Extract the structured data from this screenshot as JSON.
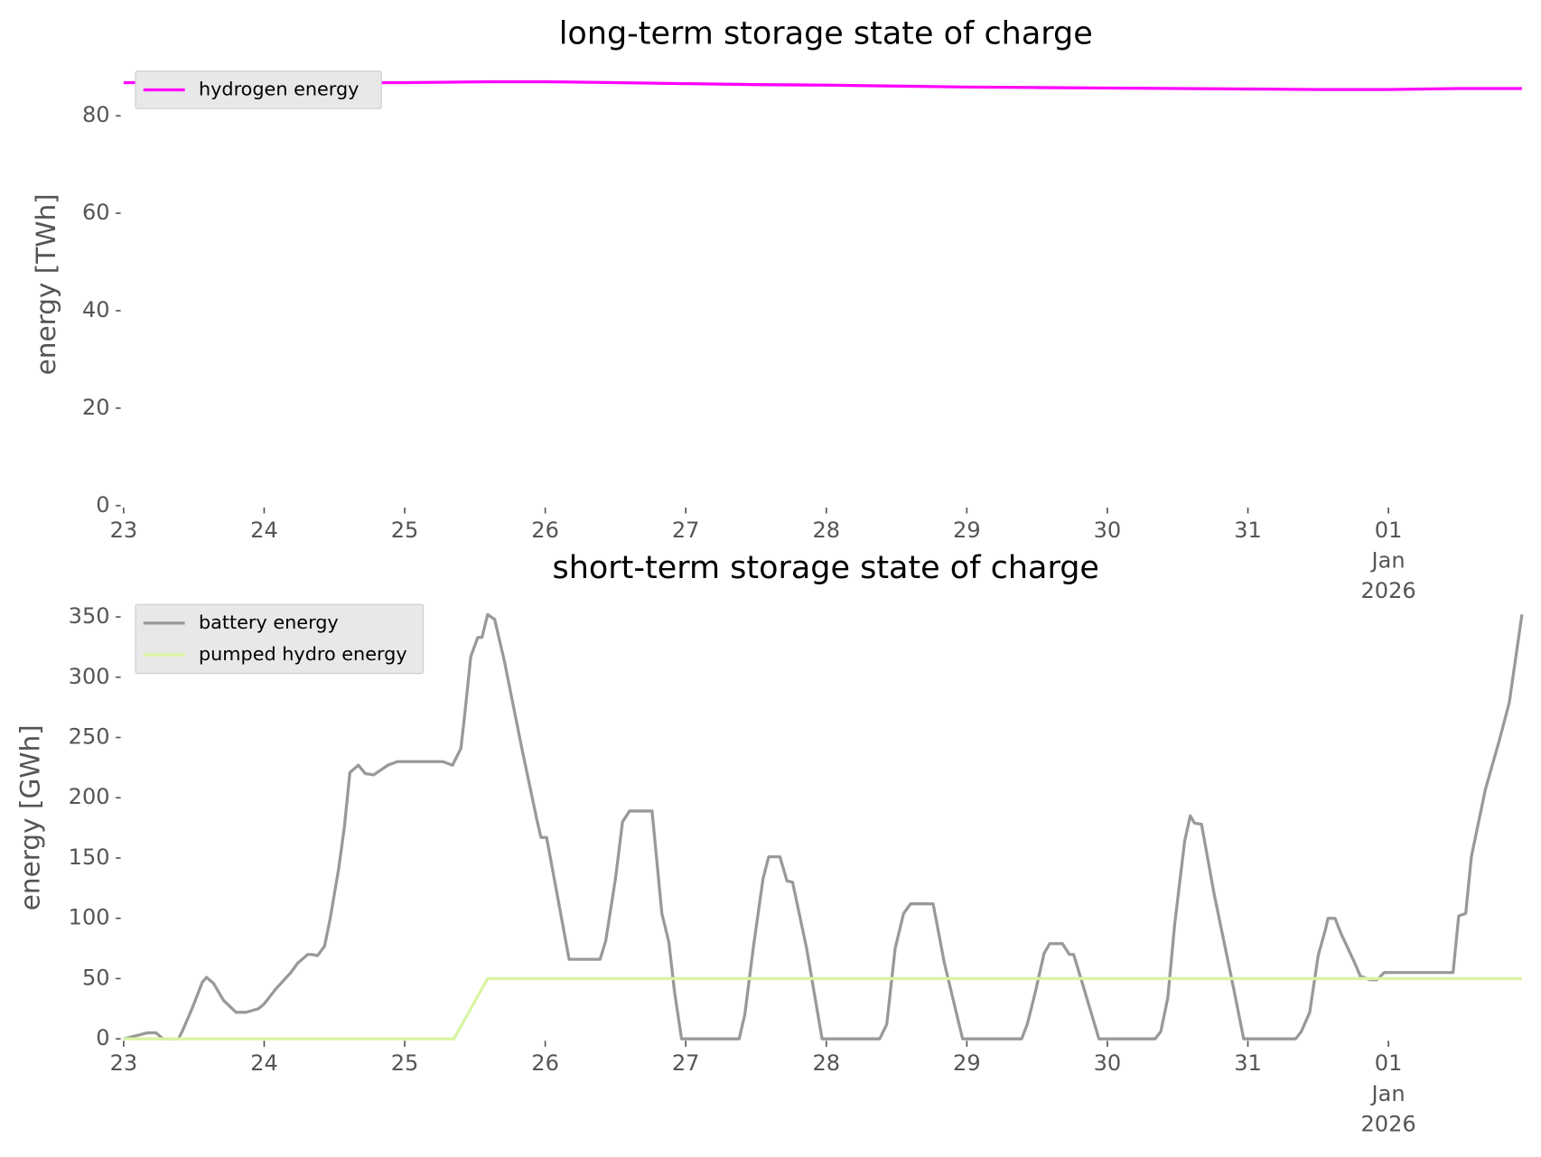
{
  "chart_data": [
    {
      "type": "line",
      "title": "long-term storage state of charge",
      "y_label": "energy [TWh]",
      "xlim": [
        23,
        33
      ],
      "ylim": [
        0,
        91
      ],
      "xticks": [
        {
          "value": 23,
          "label": "23"
        },
        {
          "value": 24,
          "label": "24"
        },
        {
          "value": 25,
          "label": "25"
        },
        {
          "value": 26,
          "label": "26"
        },
        {
          "value": 27,
          "label": "27"
        },
        {
          "value": 28,
          "label": "28"
        },
        {
          "value": 29,
          "label": "29"
        },
        {
          "value": 30,
          "label": "30"
        },
        {
          "value": 31,
          "label": "31"
        },
        {
          "value": 32,
          "label": "01\nJan\n2026"
        }
      ],
      "yticks": [
        0,
        20,
        40,
        60,
        80
      ],
      "grid": false,
      "legend": "upper left",
      "series": [
        {
          "name": "hydrogen energy",
          "color": "#ff00ff",
          "x": [
            23,
            24,
            25,
            25.6,
            26,
            26.5,
            27,
            27.5,
            28,
            28.5,
            29,
            29.5,
            30,
            30.5,
            31,
            31.5,
            32,
            32.5,
            32.95
          ],
          "values": [
            86.8,
            86.8,
            86.8,
            87.0,
            87.0,
            86.8,
            86.6,
            86.4,
            86.3,
            86.1,
            85.9,
            85.8,
            85.7,
            85.6,
            85.5,
            85.4,
            85.4,
            85.6,
            85.6
          ]
        }
      ]
    },
    {
      "type": "line",
      "title": "short-term storage state of charge",
      "y_label": "energy [GWh]",
      "xlim": [
        23,
        33
      ],
      "ylim": [
        0,
        367
      ],
      "xticks": [
        {
          "value": 23,
          "label": "23"
        },
        {
          "value": 24,
          "label": "24"
        },
        {
          "value": 25,
          "label": "25"
        },
        {
          "value": 26,
          "label": "26"
        },
        {
          "value": 27,
          "label": "27"
        },
        {
          "value": 28,
          "label": "28"
        },
        {
          "value": 29,
          "label": "29"
        },
        {
          "value": 30,
          "label": "30"
        },
        {
          "value": 31,
          "label": "31"
        },
        {
          "value": 32,
          "label": "01\nJan\n2026"
        }
      ],
      "yticks": [
        0,
        50,
        100,
        150,
        200,
        250,
        300,
        350
      ],
      "grid": false,
      "legend": "upper left",
      "series": [
        {
          "name": "battery energy",
          "color": "#999999",
          "x": [
            23,
            23.17,
            23.23,
            23.28,
            23.39,
            23.42,
            23.49,
            23.56,
            23.59,
            23.64,
            23.71,
            23.8,
            23.87,
            23.96,
            24.0,
            24.08,
            24.19,
            24.24,
            24.31,
            24.34,
            24.38,
            24.43,
            24.47,
            24.53,
            24.57,
            24.61,
            24.67,
            24.72,
            24.78,
            24.83,
            24.88,
            24.95,
            25.27,
            25.34,
            25.4,
            25.43,
            25.47,
            25.52,
            25.55,
            25.59,
            25.64,
            25.71,
            25.83,
            25.94,
            25.97,
            26.01,
            26.17,
            26.39,
            26.43,
            26.5,
            26.55,
            26.6,
            26.76,
            26.83,
            26.88,
            26.92,
            26.97,
            27.38,
            27.42,
            27.48,
            27.55,
            27.59,
            27.67,
            27.72,
            27.76,
            27.86,
            27.97,
            28.38,
            28.43,
            28.49,
            28.55,
            28.6,
            28.76,
            28.84,
            28.97,
            29.39,
            29.43,
            29.49,
            29.55,
            29.59,
            29.68,
            29.73,
            29.76,
            29.83,
            29.94,
            30.34,
            30.38,
            30.43,
            30.48,
            30.55,
            30.59,
            30.62,
            30.67,
            30.76,
            30.9,
            30.97,
            31.34,
            31.38,
            31.44,
            31.5,
            31.55,
            31.57,
            31.62,
            31.66,
            31.76,
            31.8,
            31.87,
            31.92,
            31.97,
            32.46,
            32.5,
            32.55,
            32.59,
            32.69,
            32.79,
            32.86,
            32.95
          ],
          "values": [
            0,
            5,
            5,
            0,
            0,
            7,
            26,
            47,
            51,
            46,
            32,
            22,
            22,
            25,
            29,
            41,
            55,
            63,
            70,
            70,
            69,
            77,
            100,
            141,
            175,
            221,
            227,
            220,
            219,
            223,
            227,
            230,
            230,
            227,
            241,
            272,
            317,
            333,
            333,
            352,
            348,
            313,
            243,
            182,
            167,
            167,
            66,
            66,
            81,
            133,
            180,
            189,
            189,
            104,
            80,
            39,
            0,
            0,
            20,
            75,
            133,
            151,
            151,
            131,
            130,
            75,
            0,
            0,
            12,
            75,
            104,
            112,
            112,
            63,
            0,
            0,
            12,
            40,
            71,
            79,
            79,
            70,
            70,
            43,
            0,
            0,
            6,
            34,
            96,
            164,
            185,
            179,
            178,
            120,
            41,
            0,
            0,
            6,
            22,
            69,
            90,
            100,
            100,
            88,
            63,
            52,
            49,
            49,
            55,
            55,
            102,
            104,
            151,
            207,
            248,
            279,
            352
          ]
        },
        {
          "name": "pumped hydro energy",
          "color": "#d8f5a2",
          "x": [
            23,
            25.35,
            25.59,
            32.95
          ],
          "values": [
            0,
            0,
            50,
            50
          ]
        }
      ]
    }
  ]
}
